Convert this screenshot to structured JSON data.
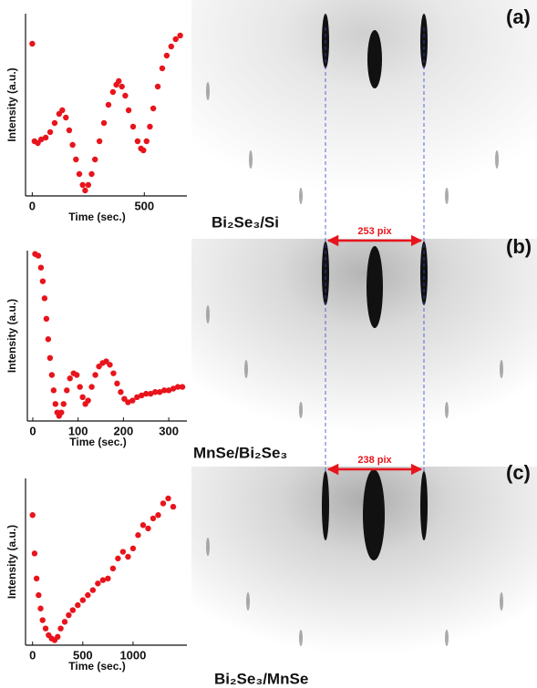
{
  "chart_data": [
    {
      "type": "scatter",
      "color": "#e8141c",
      "x_label": "Time (sec.)",
      "y_label": "Intensity (a.u.)",
      "xlim": [
        -30,
        690
      ],
      "ylim": [
        0,
        1
      ],
      "xticks": [
        0,
        500
      ],
      "x": [
        0,
        10,
        25,
        40,
        60,
        80,
        100,
        120,
        134,
        150,
        165,
        180,
        195,
        210,
        225,
        236,
        250,
        265,
        280,
        300,
        320,
        340,
        360,
        375,
        386,
        400,
        415,
        430,
        450,
        470,
        485,
        496,
        510,
        525,
        540,
        560,
        580,
        600,
        620,
        640,
        660
      ],
      "values": [
        0.835,
        0.3,
        0.29,
        0.31,
        0.32,
        0.35,
        0.4,
        0.45,
        0.47,
        0.43,
        0.36,
        0.28,
        0.2,
        0.12,
        0.06,
        0.03,
        0.06,
        0.12,
        0.2,
        0.3,
        0.4,
        0.5,
        0.57,
        0.61,
        0.63,
        0.6,
        0.55,
        0.47,
        0.38,
        0.3,
        0.26,
        0.25,
        0.3,
        0.38,
        0.48,
        0.6,
        0.7,
        0.77,
        0.82,
        0.86,
        0.88
      ]
    },
    {
      "type": "scatter",
      "color": "#e8141c",
      "x_label": "Time (sec.)",
      "y_label": "Intensity (a.u.)",
      "xlim": [
        -12,
        340
      ],
      "ylim": [
        0,
        1
      ],
      "xticks": [
        0,
        100,
        200,
        300
      ],
      "x": [
        5,
        12,
        18,
        22,
        26,
        30,
        34,
        38,
        42,
        46,
        50,
        54,
        58,
        63,
        68,
        75,
        82,
        90,
        97,
        104,
        110,
        116,
        122,
        130,
        138,
        146,
        154,
        162,
        170,
        178,
        186,
        194,
        202,
        210,
        220,
        230,
        240,
        250,
        260,
        270,
        280,
        290,
        300,
        310,
        320,
        330
      ],
      "values": [
        0.98,
        0.97,
        0.9,
        0.82,
        0.72,
        0.6,
        0.48,
        0.37,
        0.27,
        0.18,
        0.1,
        0.05,
        0.03,
        0.05,
        0.1,
        0.18,
        0.25,
        0.28,
        0.27,
        0.2,
        0.14,
        0.1,
        0.12,
        0.2,
        0.27,
        0.32,
        0.34,
        0.35,
        0.33,
        0.28,
        0.22,
        0.17,
        0.13,
        0.11,
        0.12,
        0.14,
        0.15,
        0.16,
        0.16,
        0.17,
        0.17,
        0.18,
        0.18,
        0.19,
        0.2,
        0.2
      ]
    },
    {
      "type": "scatter",
      "color": "#e8141c",
      "x_label": "Time (sec.)",
      "y_label": "Intensity (a.u.)",
      "xlim": [
        -70,
        1536
      ],
      "ylim": [
        0,
        1
      ],
      "xticks": [
        0,
        500,
        1000
      ],
      "x": [
        0,
        20,
        40,
        60,
        80,
        100,
        130,
        160,
        190,
        220,
        250,
        280,
        320,
        360,
        400,
        450,
        500,
        550,
        600,
        650,
        700,
        750,
        800,
        850,
        900,
        950,
        1000,
        1050,
        1100,
        1150,
        1200,
        1250,
        1300,
        1350,
        1400
      ],
      "values": [
        0.78,
        0.55,
        0.4,
        0.3,
        0.22,
        0.15,
        0.1,
        0.06,
        0.04,
        0.03,
        0.05,
        0.1,
        0.14,
        0.18,
        0.21,
        0.24,
        0.27,
        0.3,
        0.33,
        0.37,
        0.39,
        0.4,
        0.46,
        0.52,
        0.56,
        0.53,
        0.58,
        0.66,
        0.72,
        0.7,
        0.76,
        0.78,
        0.85,
        0.88,
        0.83
      ]
    }
  ],
  "images": [
    {
      "panel": "(a)",
      "caption": "Bi₂Se₃/Si"
    },
    {
      "panel": "(b)",
      "caption": "MnSe/Bi₂Se₃"
    },
    {
      "panel": "(c)",
      "caption": "Bi₂Se₃/MnSe"
    }
  ],
  "spacings": [
    "253 pix",
    "238 pix"
  ]
}
